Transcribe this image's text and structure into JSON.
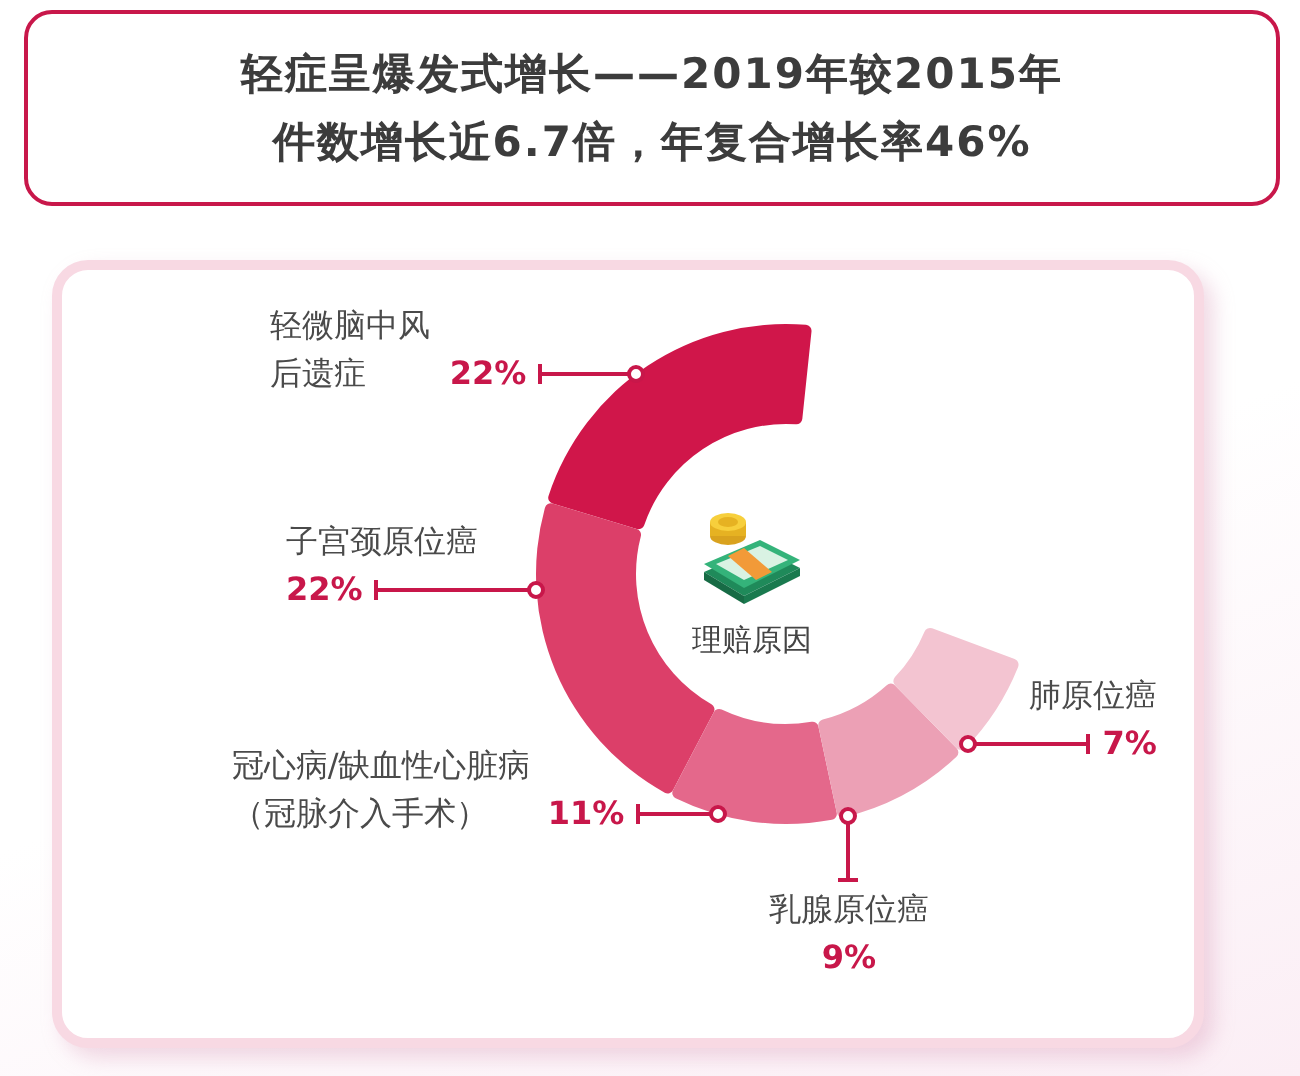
{
  "chart_data": {
    "type": "donut",
    "title": "轻症呈爆发式增长——2019年较2015年件数增长近6.7倍，年复合增长率46%",
    "categories": [
      "轻微脑中风后遗症",
      "子宫颈原位癌",
      "冠心病/缺血性心脏病（冠脉介入手术）",
      "乳腺原位癌",
      "肺原位癌"
    ],
    "values": [
      22,
      22,
      11,
      9,
      7
    ],
    "value_labels": [
      "22%",
      "22%",
      "11%",
      "9%",
      "7%"
    ],
    "colors": [
      "#d0164a",
      "#dc3f69",
      "#e4688b",
      "#eca0b5",
      "#f3c4d1"
    ],
    "annotations": [
      "理赔原因"
    ]
  }
}
